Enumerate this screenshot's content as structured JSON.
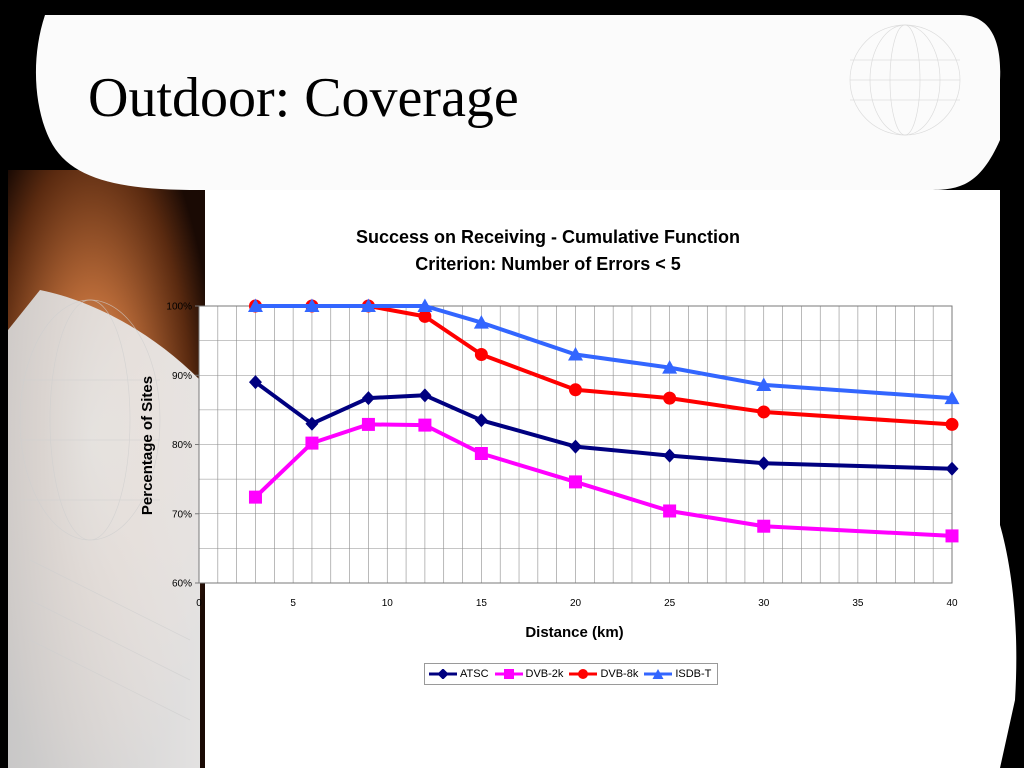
{
  "slide": {
    "title": "Outdoor: Coverage"
  },
  "chart_data": {
    "type": "line",
    "title_lines": [
      "Success on Receiving - Cumulative Function",
      "Criterion: Number of Errors < 5"
    ],
    "xlabel": "Distance (km)",
    "ylabel": "Percentage of Sites",
    "xlim": [
      0,
      40
    ],
    "ylim": [
      60,
      100
    ],
    "x_ticks": [
      0,
      5,
      10,
      15,
      20,
      25,
      30,
      35,
      40
    ],
    "y_ticks": [
      60,
      70,
      80,
      90,
      100
    ],
    "y_tick_labels": [
      "60%",
      "70%",
      "80%",
      "90%",
      "100%"
    ],
    "grid": true,
    "legend_position": "bottom",
    "series": [
      {
        "name": "ATSC",
        "color": "#000080",
        "marker": "diamond",
        "x": [
          3,
          6,
          9,
          12,
          15,
          20,
          25,
          30,
          40
        ],
        "values": [
          89,
          83,
          86.7,
          87.1,
          83.5,
          79.7,
          78.4,
          77.3,
          76.5
        ]
      },
      {
        "name": "DVB-2k",
        "color": "#FF00FF",
        "marker": "square",
        "x": [
          3,
          6,
          9,
          12,
          15,
          20,
          25,
          30,
          40
        ],
        "values": [
          72.4,
          80.2,
          82.9,
          82.8,
          78.7,
          74.6,
          70.4,
          68.2,
          66.8
        ]
      },
      {
        "name": "DVB-8k",
        "color": "#FF0000",
        "marker": "circle",
        "x": [
          3,
          6,
          9,
          12,
          15,
          20,
          25,
          30,
          40
        ],
        "values": [
          100,
          100,
          100,
          98.5,
          93,
          87.9,
          86.7,
          84.7,
          82.9
        ]
      },
      {
        "name": "ISDB-T",
        "color": "#3366FF",
        "marker": "triangle",
        "x": [
          3,
          6,
          9,
          12,
          15,
          20,
          25,
          30,
          40
        ],
        "values": [
          100,
          100,
          100,
          100,
          97.6,
          93,
          91.1,
          88.6,
          86.7
        ]
      }
    ]
  }
}
